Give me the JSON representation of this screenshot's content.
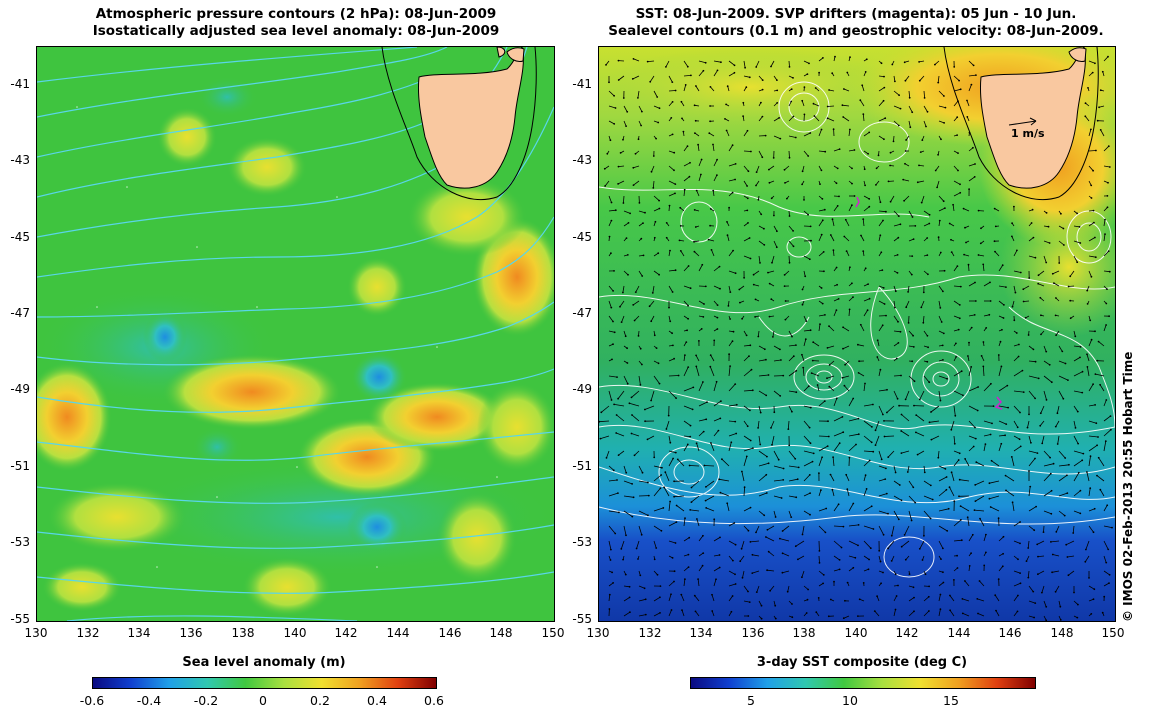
{
  "left_panel": {
    "title_line1": "Atmospheric pressure contours (2 hPa): 08-Jun-2009",
    "title_line2": "Isostatically adjusted sea level anomaly: 08-Jun-2009",
    "colorbar_label": "Sea level anomaly (m)",
    "colorbar_ticks": [
      "-0.6",
      "-0.4",
      "-0.2",
      "0",
      "0.2",
      "0.4",
      "0.6"
    ]
  },
  "right_panel": {
    "title_line1": "SST: 08-Jun-2009. SVP drifters (magenta): 05 Jun - 10 Jun.",
    "title_line2": "Sealevel contours (0.1 m) and geostrophic velocity: 08-Jun-2009.",
    "colorbar_label": "3-day SST composite (deg C)",
    "colorbar_ticks": [
      "5",
      "10",
      "15"
    ],
    "velocity_scale_label": "1 m/s"
  },
  "axes": {
    "y_ticks": [
      "-41",
      "-43",
      "-45",
      "-47",
      "-49",
      "-51",
      "-53",
      "-55"
    ],
    "x_ticks": [
      "130",
      "132",
      "134",
      "136",
      "138",
      "140",
      "142",
      "144",
      "146",
      "148",
      "150"
    ]
  },
  "credit": "© IMOS 02-Feb-2013 20:55 Hobart Time",
  "colors": {
    "land": "#f9c8a0",
    "ocean_green": "#3cc83c",
    "contour_cyan": "#59d6e8",
    "drifter_magenta": "#d020d0"
  }
}
